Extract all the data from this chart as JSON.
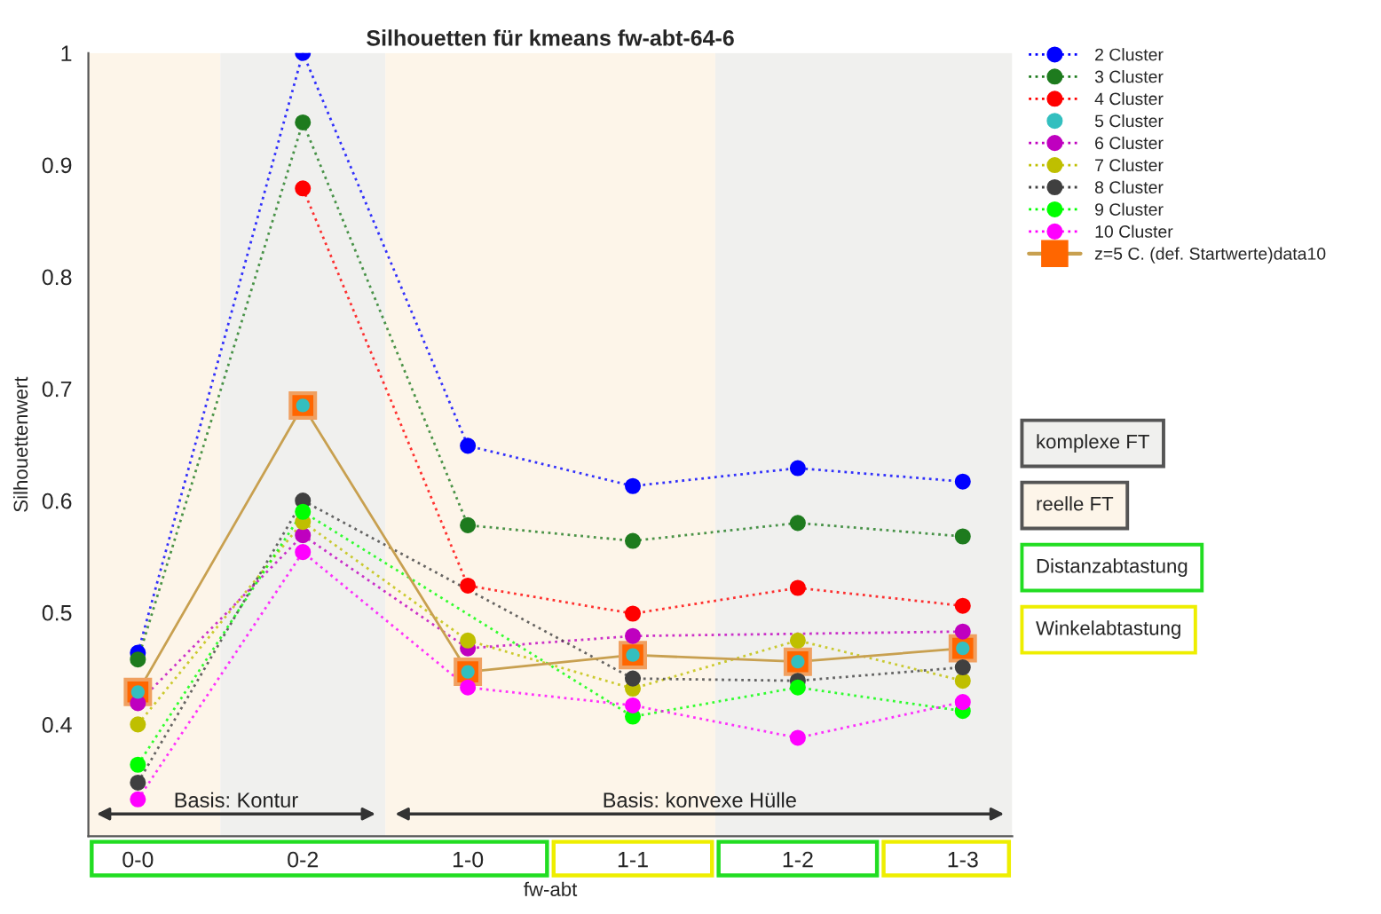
{
  "chart_data": {
    "type": "line",
    "title": "Silhouetten für kmeans fw-abt-64-6",
    "xlabel": "fw-abt",
    "ylabel": "Silhouettenwert",
    "categories": [
      "0-0",
      "0-2",
      "1-0",
      "1-1",
      "1-2",
      "1-3"
    ],
    "ylim": [
      0.3,
      1
    ],
    "yticks": [
      0.4,
      0.5,
      0.6,
      0.7,
      0.8,
      0.9,
      1
    ],
    "marker": "circle",
    "line_style": "dotted",
    "grid": false,
    "legend": "top right",
    "series": [
      {
        "name": "2 Cluster",
        "color": "#0000ff",
        "values": [
          0.464,
          1.0,
          0.649,
          0.613,
          0.629,
          0.617
        ]
      },
      {
        "name": "3 Cluster",
        "color": "#1e7b1e",
        "values": [
          0.458,
          0.938,
          0.578,
          0.564,
          0.58,
          0.568
        ]
      },
      {
        "name": "4 Cluster",
        "color": "#ff0000",
        "values": [
          null,
          0.879,
          0.524,
          0.499,
          0.522,
          0.506
        ]
      },
      {
        "name": "5 Cluster",
        "color": "#33bfbf",
        "type": "scatter",
        "values": [
          0.429,
          0.685,
          0.447,
          0.462,
          0.456,
          0.468
        ]
      },
      {
        "name": "6 Cluster",
        "color": "#bf00bf",
        "values": [
          0.419,
          0.569,
          0.468,
          0.479,
          null,
          0.483
        ]
      },
      {
        "name": "7 Cluster",
        "color": "#bfbf00",
        "values": [
          0.4,
          0.581,
          0.475,
          0.432,
          0.475,
          0.439
        ]
      },
      {
        "name": "8 Cluster",
        "color": "#404040",
        "values": [
          0.348,
          0.6,
          null,
          0.441,
          0.439,
          0.451
        ]
      },
      {
        "name": "9 Cluster",
        "color": "#00ff00",
        "values": [
          0.364,
          0.59,
          null,
          0.407,
          0.433,
          0.412
        ]
      },
      {
        "name": "10 Cluster",
        "color": "#ff00ff",
        "values": [
          0.333,
          0.554,
          0.433,
          0.417,
          0.388,
          0.42
        ]
      },
      {
        "name": "z=5 C. (def. Startwerte)data10",
        "color": "#ff6600",
        "marker": "square",
        "line_style": "solid",
        "values": [
          0.429,
          0.685,
          0.447,
          0.462,
          0.456,
          0.468
        ]
      }
    ],
    "annotations": [
      "Basis: Kontur",
      "Basis: konvexe Hülle",
      "komplexe FT",
      "reelle FT",
      "Distanzabtastung",
      "Winkelabtastung"
    ]
  }
}
